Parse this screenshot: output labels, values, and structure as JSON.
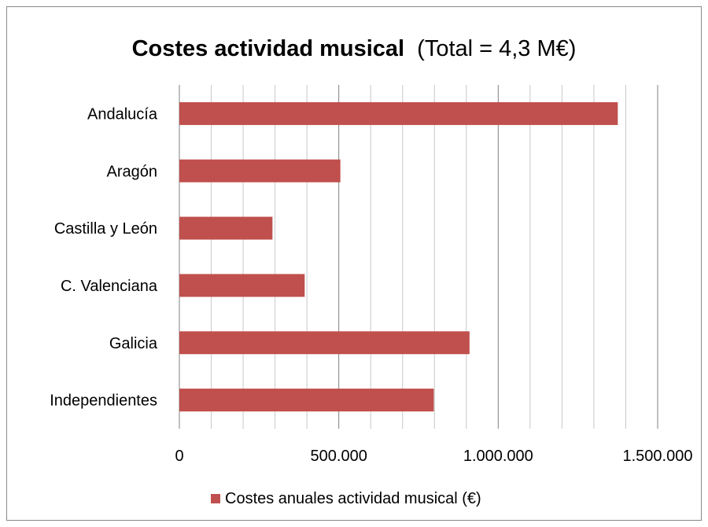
{
  "chart_data": {
    "type": "bar",
    "orientation": "horizontal",
    "title": "Costes actividad musical",
    "subtitle": "(Total = 4,3 M€)",
    "categories": [
      "Andalucía",
      "Aragón",
      "Castilla y León",
      "C. Valenciana",
      "Galicia",
      "Independientes"
    ],
    "series": [
      {
        "name": "Costes anuales actividad musical (€)",
        "values": [
          1375000,
          505000,
          292000,
          393000,
          910000,
          798000
        ],
        "color": "#c0504d"
      }
    ],
    "xlim": [
      0,
      1500000
    ],
    "x_ticks": [
      0,
      500000,
      1000000,
      1500000
    ],
    "x_tick_labels": [
      "0",
      "500.000",
      "1.000.000",
      "1.500.000"
    ],
    "major_grid": true,
    "minor_grid": true,
    "legend_position": "bottom"
  }
}
